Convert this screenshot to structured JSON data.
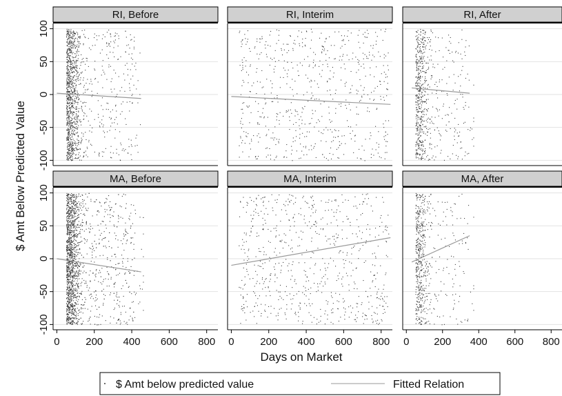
{
  "chart_data": {
    "type": "scatter",
    "ylabel": "$ Amt Below Predicted Value",
    "xlabel": "Days on Market",
    "xlim": [
      -20,
      860
    ],
    "ylim": [
      -108,
      108
    ],
    "x_ticks": [
      0,
      200,
      400,
      600,
      800
    ],
    "y_ticks": [
      100,
      50,
      0,
      -50,
      -100
    ],
    "grid": true,
    "legend": {
      "placement": "bottom",
      "entries": [
        {
          "label": "$ Amt below predicted value",
          "kind": "points"
        },
        {
          "label": "Fitted Relation",
          "kind": "line"
        }
      ]
    },
    "colors": {
      "points": "#3a3a3a",
      "fit": "#999999",
      "strip": "#d0d0d0",
      "grid": "#e2e2e2"
    },
    "panels": [
      {
        "title": "RI, Before",
        "fit": [
          [
            0,
            2
          ],
          [
            450,
            -6
          ]
        ],
        "points_approx": {
          "count": 1300,
          "x_range": [
            30,
            460
          ],
          "x_mode": 80
        }
      },
      {
        "title": "RI, Interim",
        "fit": [
          [
            0,
            -3
          ],
          [
            850,
            -15
          ]
        ],
        "points_approx": {
          "count": 650,
          "x_range": [
            40,
            840
          ],
          "x_mode": 300
        }
      },
      {
        "title": "RI, After",
        "fit": [
          [
            30,
            10
          ],
          [
            350,
            2
          ]
        ],
        "points_approx": {
          "count": 700,
          "x_range": [
            30,
            370
          ],
          "x_mode": 100
        }
      },
      {
        "title": "MA, Before",
        "fit": [
          [
            0,
            0
          ],
          [
            450,
            -20
          ]
        ],
        "points_approx": {
          "count": 2000,
          "x_range": [
            30,
            460
          ],
          "x_mode": 80
        }
      },
      {
        "title": "MA, Interim",
        "fit": [
          [
            0,
            -10
          ],
          [
            850,
            32
          ]
        ],
        "points_approx": {
          "count": 700,
          "x_range": [
            40,
            840
          ],
          "x_mode": 300
        }
      },
      {
        "title": "MA, After",
        "fit": [
          [
            30,
            -5
          ],
          [
            350,
            35
          ]
        ],
        "points_approx": {
          "count": 600,
          "x_range": [
            30,
            370
          ],
          "x_mode": 100
        }
      }
    ]
  }
}
